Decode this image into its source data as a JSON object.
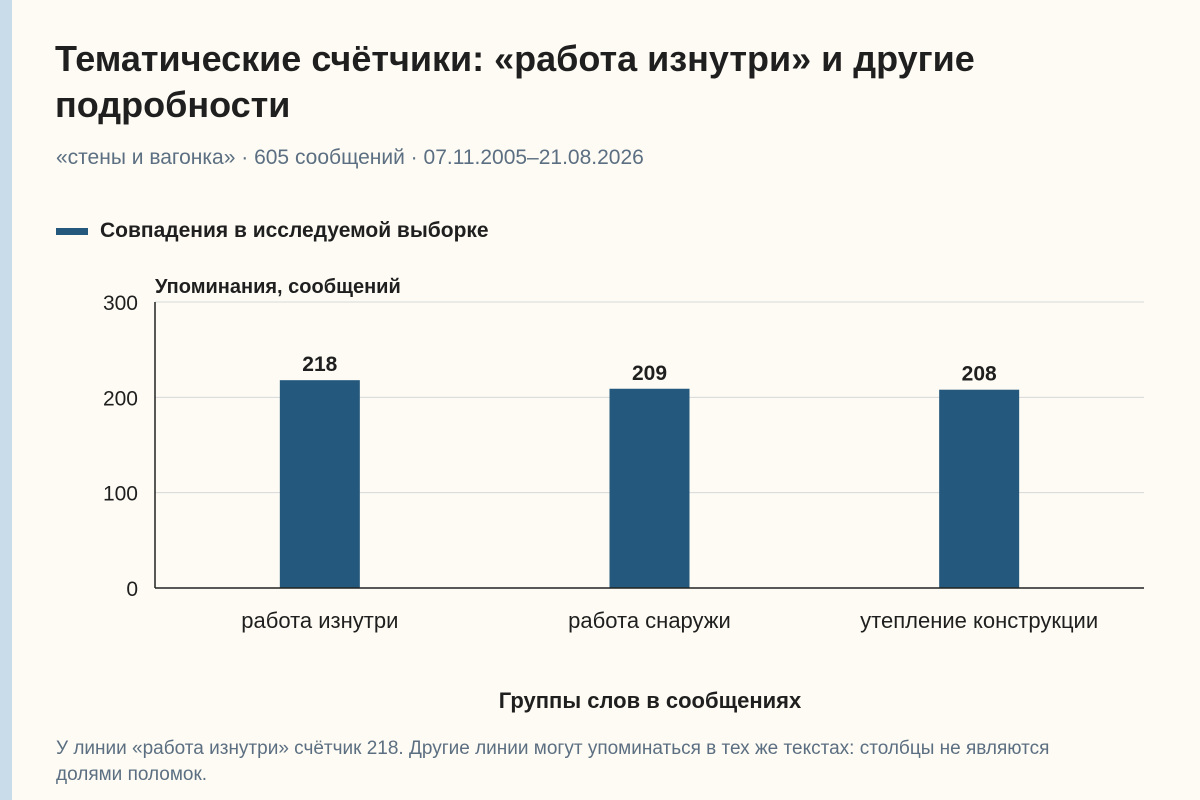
{
  "title": "Тематические счётчики: «работа изнутри» и другие подробности",
  "subtitle": "«стены и вагонка» · 605 сообщений · 07.11.2005–21.08.2026",
  "footnote": "У линии «работа изнутри» счётчик 218. Другие линии могут упоминаться в тех же текстах: столбцы не являются долями поломок.",
  "colors": {
    "bar": "#24587d",
    "grid": "#d8d8d8",
    "axis": "#222222",
    "text": "#1f1f1f",
    "muted": "#5c6f82"
  },
  "chart_data": {
    "type": "bar",
    "title": "Тематические счётчики: «работа изнутри» и другие подробности",
    "categories": [
      "работа изнутри",
      "работа снаружи",
      "утепление конструкции"
    ],
    "series": [
      {
        "name": "Совпадения в исследуемой выборке",
        "values": [
          218,
          209,
          208
        ]
      }
    ],
    "xlabel": "Группы слов в сообщениях",
    "ylabel": "Упоминания, сообщений",
    "ylim": [
      0,
      300
    ],
    "yticks": [
      0,
      100,
      200,
      300
    ],
    "data_labels": [
      "218",
      "209",
      "208"
    ],
    "grid": true,
    "legend_position": "top-left"
  }
}
